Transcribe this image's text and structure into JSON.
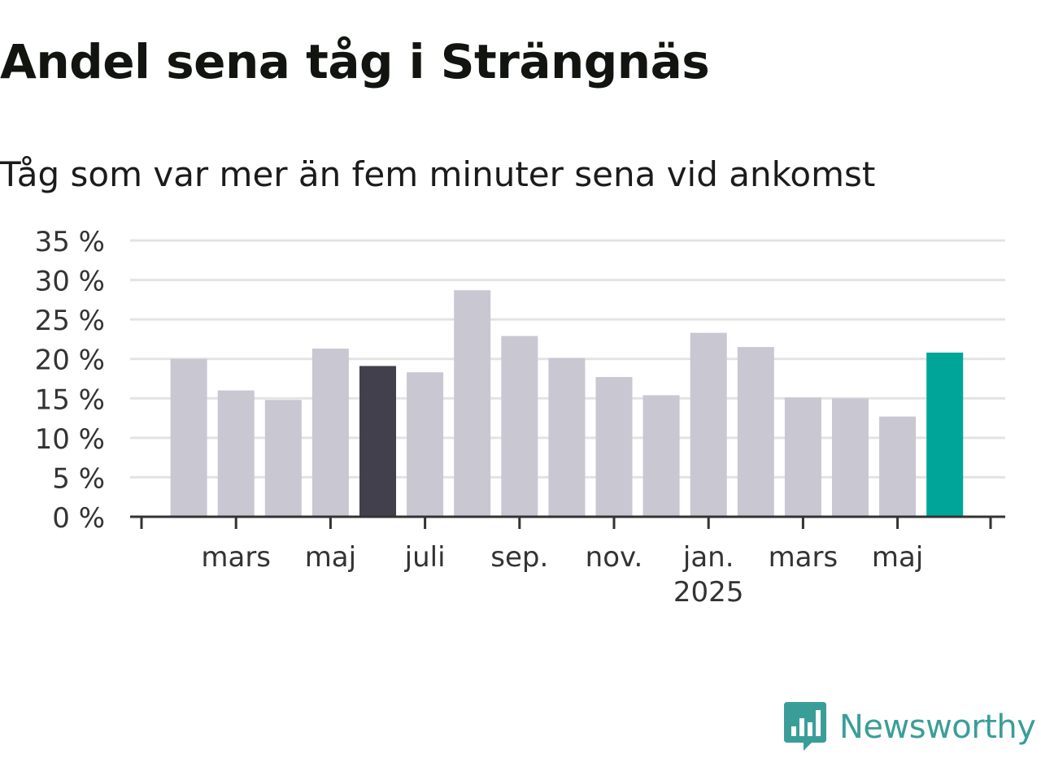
{
  "header": {
    "title": "Andel sena tåg i Strängnäs",
    "subtitle": "Tåg som var mer än fem minuter sena vid ankomst"
  },
  "chart_data": {
    "type": "bar",
    "ylim": [
      0,
      35
    ],
    "y_ticks": [
      {
        "value": 0,
        "label": "0 %"
      },
      {
        "value": 5,
        "label": "5 %"
      },
      {
        "value": 10,
        "label": "10 %"
      },
      {
        "value": 15,
        "label": "15 %"
      },
      {
        "value": 20,
        "label": "20 %"
      },
      {
        "value": 25,
        "label": "25 %"
      },
      {
        "value": 30,
        "label": "30 %"
      },
      {
        "value": 35,
        "label": "35 %"
      }
    ],
    "grid": true,
    "categories": [
      "2024-02",
      "2024-03",
      "2024-04",
      "2024-05",
      "2024-06",
      "2024-07",
      "2024-08",
      "2024-09",
      "2024-10",
      "2024-11",
      "2024-12",
      "2025-01",
      "2025-02",
      "2025-03",
      "2025-04",
      "2025-05",
      "2025-06"
    ],
    "values": [
      20.0,
      16.0,
      14.8,
      21.3,
      19.1,
      18.3,
      28.7,
      22.9,
      20.1,
      17.7,
      15.4,
      23.3,
      21.5,
      15.1,
      15.0,
      12.7,
      20.8
    ],
    "highlights": [
      {
        "category": "2024-06",
        "color": "#42404d"
      },
      {
        "category": "2025-06",
        "color": "#00a59a"
      }
    ],
    "x_tick_labels": [
      {
        "category": "2024-03",
        "label": "mars",
        "sublabel": ""
      },
      {
        "category": "2024-05",
        "label": "maj",
        "sublabel": ""
      },
      {
        "category": "2024-07",
        "label": "juli",
        "sublabel": ""
      },
      {
        "category": "2024-09",
        "label": "sep.",
        "sublabel": ""
      },
      {
        "category": "2024-11",
        "label": "nov.",
        "sublabel": ""
      },
      {
        "category": "2025-01",
        "label": "jan.",
        "sublabel": "2025"
      },
      {
        "category": "2025-03",
        "label": "mars",
        "sublabel": ""
      },
      {
        "category": "2025-05",
        "label": "maj",
        "sublabel": ""
      }
    ],
    "colors": {
      "bar": "#c8c7d2",
      "grid": "#e3e3e3",
      "axis": "#333333",
      "text": "#333333"
    }
  },
  "logo": {
    "icon": "chart-bubble-icon",
    "text": "Newsworthy",
    "color": "#3a9e98"
  }
}
